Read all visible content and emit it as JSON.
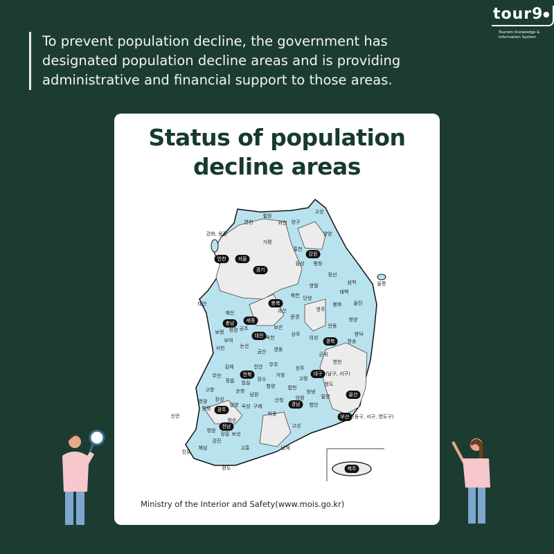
{
  "intro": {
    "lines": [
      "To prevent population decline, the government has",
      "designated population decline areas and is providing",
      "administrative and financial support to those areas."
    ]
  },
  "logo": {
    "word": "tour9",
    "subtitle_1": "Tourism Knowledge &",
    "subtitle_2": "Information System"
  },
  "card": {
    "title_1": "Status of population",
    "title_2": "decline areas",
    "source": "Ministry of the Interior and Safety(www.mois.go.kr)"
  },
  "map": {
    "colors": {
      "decline_area": "#b9e2ef",
      "other_area": "#ececec",
      "border": "#111111"
    },
    "decline_areas": [
      "고성",
      "철원",
      "연천",
      "화천",
      "양구",
      "강화, 옹진",
      "양양",
      "가평",
      "홍천",
      "횡성",
      "평창",
      "정선",
      "삼척",
      "울릉",
      "영월",
      "태백",
      "제천",
      "단양",
      "태안",
      "봉화",
      "울진",
      "괴산",
      "예산",
      "영주",
      "문경",
      "영양",
      "안동",
      "보은",
      "보령",
      "청양",
      "공주",
      "옥천",
      "상주",
      "의성",
      "청송",
      "영덕",
      "부여",
      "논산",
      "서천",
      "금산",
      "영동",
      "군위",
      "영천",
      "김제",
      "진안",
      "무주",
      "성주",
      "거창",
      "무안",
      "정읍",
      "임실",
      "장수",
      "고령",
      "청도",
      "함양",
      "합천",
      "고창",
      "순창",
      "창녕",
      "남원",
      "밀양",
      "의령",
      "영광",
      "장성",
      "담양",
      "산청",
      "곡성",
      "구례",
      "함안",
      "함평",
      "신안",
      "하동",
      "화순",
      "고성",
      "영암",
      "장흥",
      "보성",
      "강진",
      "남해",
      "해남",
      "고흥",
      "진도",
      "완도"
    ],
    "provinces": [
      "인천",
      "서울",
      "경기",
      "강원",
      "충북",
      "충남",
      "세종",
      "대전",
      "경북",
      "전북",
      "대구",
      "울산",
      "광주",
      "경남",
      "전남",
      "부산",
      "제주"
    ],
    "notes": {
      "daegu": "(남구, 서구)",
      "busan": "(동구, 서구, 영도구)"
    }
  }
}
